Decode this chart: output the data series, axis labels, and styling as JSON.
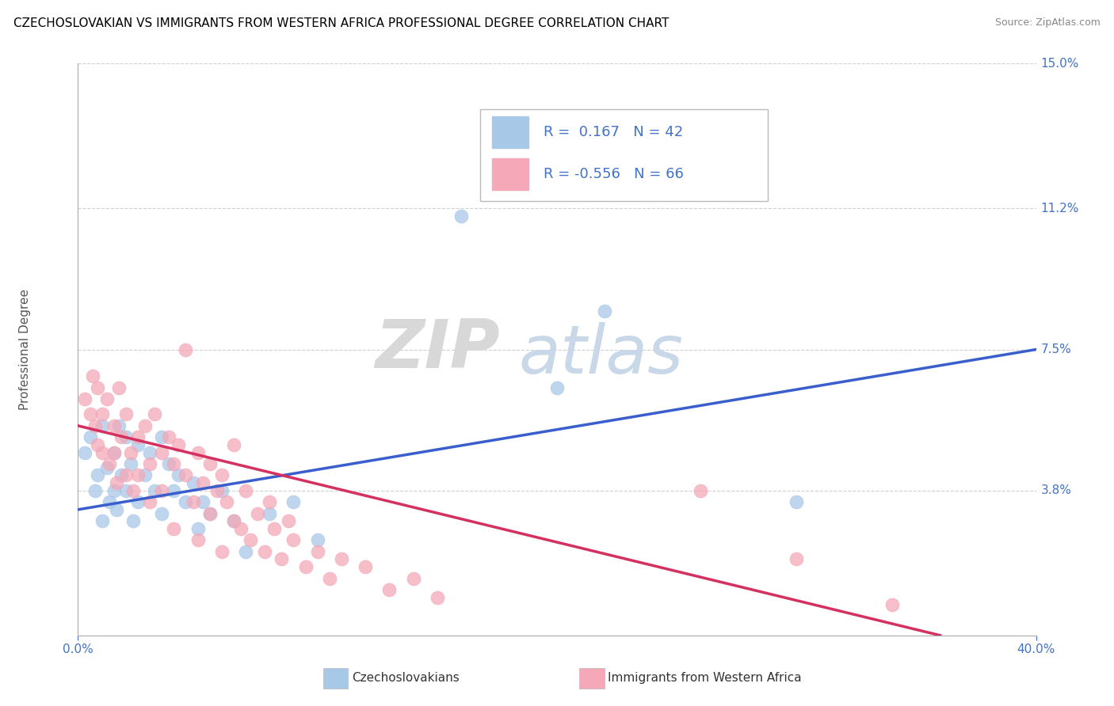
{
  "title": "CZECHOSLOVAKIAN VS IMMIGRANTS FROM WESTERN AFRICA PROFESSIONAL DEGREE CORRELATION CHART",
  "source_text": "Source: ZipAtlas.com",
  "ylabel": "Professional Degree",
  "xlim": [
    0.0,
    0.4
  ],
  "ylim": [
    0.0,
    0.15
  ],
  "yticks": [
    0.038,
    0.075,
    0.112,
    0.15
  ],
  "ytick_labels": [
    "3.8%",
    "7.5%",
    "11.2%",
    "15.0%"
  ],
  "blue_color": "#a8c8e8",
  "pink_color": "#f4a8b8",
  "blue_line_color": "#3a5fcd",
  "pink_line_color": "#d43060",
  "blue_R": 0.167,
  "blue_N": 42,
  "pink_R": -0.556,
  "pink_N": 66,
  "legend_label_blue": "Czechoslovakians",
  "legend_label_pink": "Immigrants from Western Africa",
  "watermark_zip": "ZIP",
  "watermark_atlas": "atlas",
  "background_color": "#ffffff",
  "grid_color": "#d0d0d0",
  "title_color": "#000000",
  "axis_label_color": "#555555",
  "tick_label_color": "#4472c4",
  "blue_line_y0": 0.033,
  "blue_line_y1": 0.075,
  "pink_line_y0": 0.055,
  "pink_line_y1": 0.0,
  "blue_scatter": [
    [
      0.003,
      0.048
    ],
    [
      0.005,
      0.052
    ],
    [
      0.007,
      0.038
    ],
    [
      0.008,
      0.042
    ],
    [
      0.01,
      0.03
    ],
    [
      0.01,
      0.055
    ],
    [
      0.012,
      0.044
    ],
    [
      0.013,
      0.035
    ],
    [
      0.015,
      0.048
    ],
    [
      0.015,
      0.038
    ],
    [
      0.016,
      0.033
    ],
    [
      0.017,
      0.055
    ],
    [
      0.018,
      0.042
    ],
    [
      0.02,
      0.038
    ],
    [
      0.02,
      0.052
    ],
    [
      0.022,
      0.045
    ],
    [
      0.023,
      0.03
    ],
    [
      0.025,
      0.05
    ],
    [
      0.025,
      0.035
    ],
    [
      0.028,
      0.042
    ],
    [
      0.03,
      0.048
    ],
    [
      0.032,
      0.038
    ],
    [
      0.035,
      0.052
    ],
    [
      0.035,
      0.032
    ],
    [
      0.038,
      0.045
    ],
    [
      0.04,
      0.038
    ],
    [
      0.042,
      0.042
    ],
    [
      0.045,
      0.035
    ],
    [
      0.048,
      0.04
    ],
    [
      0.05,
      0.028
    ],
    [
      0.052,
      0.035
    ],
    [
      0.055,
      0.032
    ],
    [
      0.06,
      0.038
    ],
    [
      0.065,
      0.03
    ],
    [
      0.07,
      0.022
    ],
    [
      0.08,
      0.032
    ],
    [
      0.09,
      0.035
    ],
    [
      0.1,
      0.025
    ],
    [
      0.2,
      0.065
    ],
    [
      0.22,
      0.085
    ],
    [
      0.3,
      0.035
    ],
    [
      0.16,
      0.11
    ]
  ],
  "pink_scatter": [
    [
      0.003,
      0.062
    ],
    [
      0.005,
      0.058
    ],
    [
      0.006,
      0.068
    ],
    [
      0.007,
      0.055
    ],
    [
      0.008,
      0.05
    ],
    [
      0.008,
      0.065
    ],
    [
      0.01,
      0.058
    ],
    [
      0.01,
      0.048
    ],
    [
      0.012,
      0.062
    ],
    [
      0.013,
      0.045
    ],
    [
      0.015,
      0.055
    ],
    [
      0.015,
      0.048
    ],
    [
      0.016,
      0.04
    ],
    [
      0.017,
      0.065
    ],
    [
      0.018,
      0.052
    ],
    [
      0.02,
      0.042
    ],
    [
      0.02,
      0.058
    ],
    [
      0.022,
      0.048
    ],
    [
      0.023,
      0.038
    ],
    [
      0.025,
      0.052
    ],
    [
      0.025,
      0.042
    ],
    [
      0.028,
      0.055
    ],
    [
      0.03,
      0.045
    ],
    [
      0.03,
      0.035
    ],
    [
      0.032,
      0.058
    ],
    [
      0.035,
      0.048
    ],
    [
      0.035,
      0.038
    ],
    [
      0.038,
      0.052
    ],
    [
      0.04,
      0.045
    ],
    [
      0.04,
      0.028
    ],
    [
      0.042,
      0.05
    ],
    [
      0.045,
      0.042
    ],
    [
      0.045,
      0.075
    ],
    [
      0.048,
      0.035
    ],
    [
      0.05,
      0.048
    ],
    [
      0.05,
      0.025
    ],
    [
      0.052,
      0.04
    ],
    [
      0.055,
      0.032
    ],
    [
      0.055,
      0.045
    ],
    [
      0.058,
      0.038
    ],
    [
      0.06,
      0.022
    ],
    [
      0.06,
      0.042
    ],
    [
      0.062,
      0.035
    ],
    [
      0.065,
      0.03
    ],
    [
      0.065,
      0.05
    ],
    [
      0.068,
      0.028
    ],
    [
      0.07,
      0.038
    ],
    [
      0.072,
      0.025
    ],
    [
      0.075,
      0.032
    ],
    [
      0.078,
      0.022
    ],
    [
      0.08,
      0.035
    ],
    [
      0.082,
      0.028
    ],
    [
      0.085,
      0.02
    ],
    [
      0.088,
      0.03
    ],
    [
      0.09,
      0.025
    ],
    [
      0.095,
      0.018
    ],
    [
      0.1,
      0.022
    ],
    [
      0.105,
      0.015
    ],
    [
      0.11,
      0.02
    ],
    [
      0.12,
      0.018
    ],
    [
      0.13,
      0.012
    ],
    [
      0.14,
      0.015
    ],
    [
      0.15,
      0.01
    ],
    [
      0.26,
      0.038
    ],
    [
      0.3,
      0.02
    ],
    [
      0.34,
      0.008
    ]
  ]
}
